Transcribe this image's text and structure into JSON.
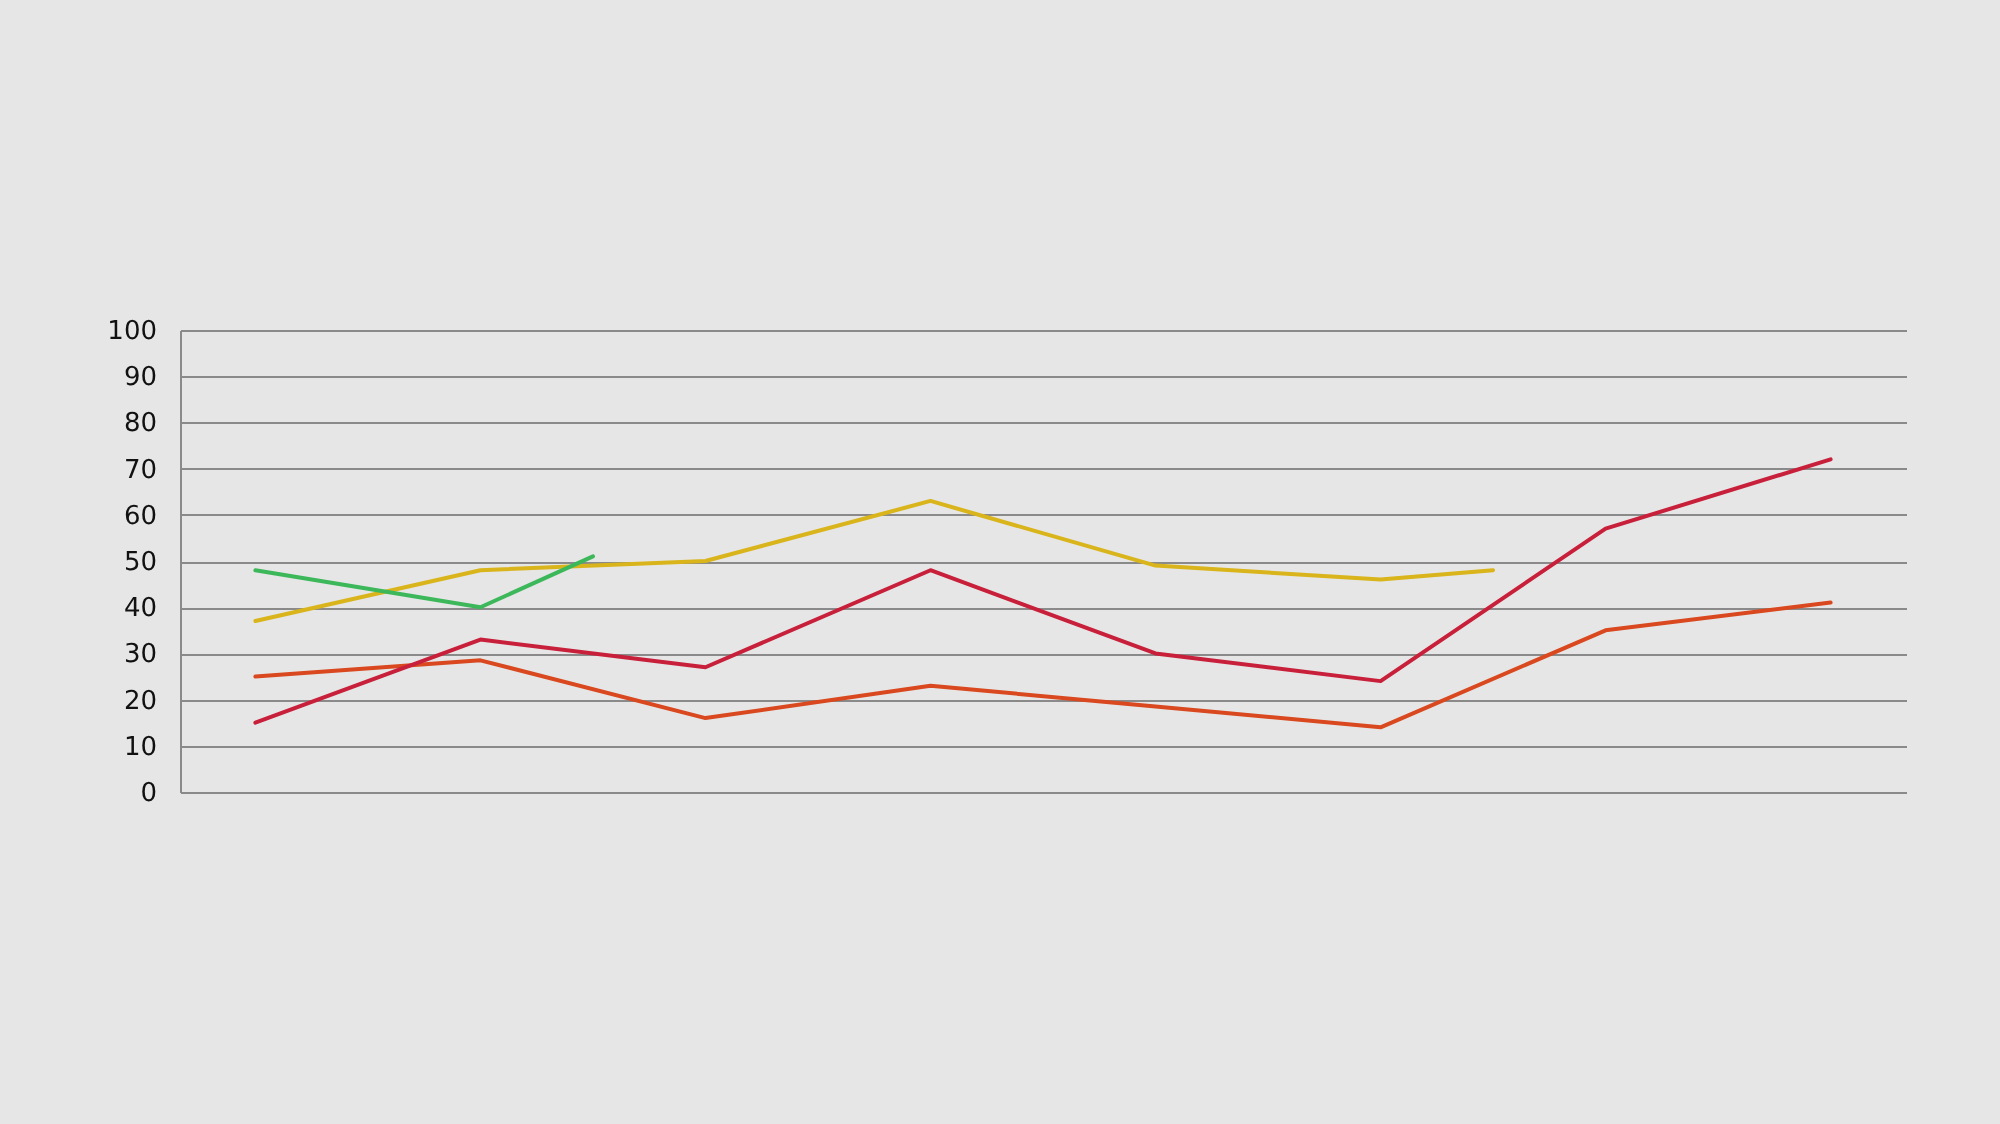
{
  "chart_data": {
    "type": "line",
    "categories": [
      null,
      null,
      null,
      null,
      null,
      null,
      null,
      null,
      null,
      null,
      null,
      null,
      null,
      null,
      null
    ],
    "ylim": [
      0,
      100
    ],
    "yticks": [
      0,
      10,
      20,
      30,
      40,
      50,
      60,
      70,
      80,
      90,
      100
    ],
    "tick_labels": "y",
    "grid": "y",
    "legend": false,
    "marker": "none",
    "line_style": "solid",
    "series": [
      {
        "color": "#d9481e",
        "values": [
          25,
          null,
          28.5,
          null,
          16,
          null,
          23,
          null,
          18.5,
          null,
          14,
          null,
          35,
          null,
          41
        ]
      },
      {
        "color": "#d9b41a",
        "values": [
          37,
          null,
          48,
          null,
          50,
          null,
          63,
          null,
          49,
          null,
          46,
          48,
          null,
          null,
          null
        ]
      },
      {
        "color": "#c8203a",
        "values": [
          15,
          null,
          33,
          null,
          27,
          null,
          48,
          null,
          30,
          null,
          24,
          null,
          57,
          null,
          72
        ]
      },
      {
        "color": "#3cb85a",
        "values": [
          48,
          null,
          40,
          51,
          null,
          null,
          null,
          null,
          null,
          null,
          null,
          null,
          null,
          null,
          null
        ]
      }
    ]
  }
}
